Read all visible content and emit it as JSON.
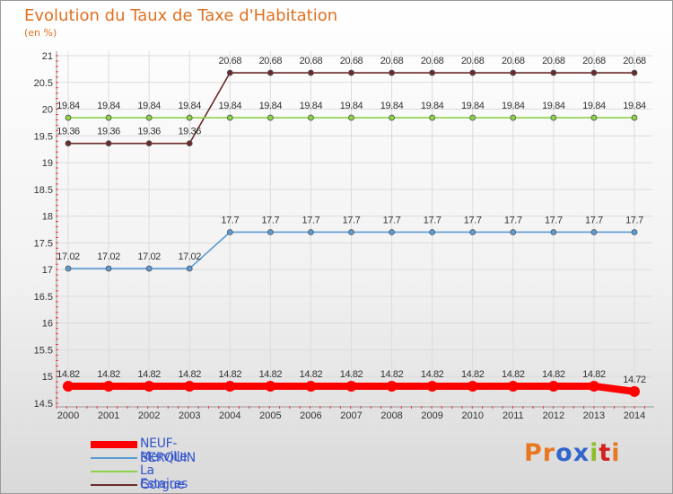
{
  "title": "Evolution du Taux de Taxe d'Habitation",
  "subtitle": "(en %)",
  "logo": {
    "text": "Proxiti",
    "colors": [
      "#e87722",
      "#e87722",
      "#3366cc",
      "#3366cc",
      "#8bbf2a",
      "#d42020",
      "#e87722"
    ]
  },
  "chart_data": {
    "type": "line",
    "title": "Evolution du Taux de Taxe d'Habitation",
    "ylabel": "(en %)",
    "xlabel": "",
    "x": [
      "2000",
      "2001",
      "2002",
      "2003",
      "2004",
      "2005",
      "2006",
      "2007",
      "2008",
      "2009",
      "2010",
      "2011",
      "2012",
      "2013",
      "2014"
    ],
    "ylim": [
      14.5,
      21
    ],
    "yticks": [
      "14.5",
      "15",
      "15.5",
      "16",
      "16.5",
      "17",
      "17.5",
      "18",
      "18.5",
      "19",
      "19.5",
      "20",
      "20.5",
      "21"
    ],
    "grid": true,
    "legend_position": "bottom-left",
    "series": [
      {
        "name": "NEUF-BERQUIN",
        "color": "#ff0000",
        "thick": true,
        "values": [
          14.82,
          14.82,
          14.82,
          14.82,
          14.82,
          14.82,
          14.82,
          14.82,
          14.82,
          14.82,
          14.82,
          14.82,
          14.82,
          14.82,
          14.72
        ],
        "labels": [
          "14.82",
          "14.82",
          "14.82",
          "14.82",
          "14.82",
          "14.82",
          "14.82",
          "14.82",
          "14.82",
          "14.82",
          "14.82",
          "14.82",
          "14.82",
          "14.82",
          "14.72"
        ]
      },
      {
        "name": "Merville",
        "color": "#5b9bd5",
        "thick": false,
        "values": [
          17.02,
          17.02,
          17.02,
          17.02,
          17.7,
          17.7,
          17.7,
          17.7,
          17.7,
          17.7,
          17.7,
          17.7,
          17.7,
          17.7,
          17.7
        ],
        "labels": [
          "17.02",
          "17.02",
          "17.02",
          "17.02",
          "17.7",
          "17.7",
          "17.7",
          "17.7",
          "17.7",
          "17.7",
          "17.7",
          "17.7",
          "17.7",
          "17.7",
          "17.7"
        ]
      },
      {
        "name": "La Gorgue",
        "color": "#8cd346",
        "thick": false,
        "values": [
          19.84,
          19.84,
          19.84,
          19.84,
          19.84,
          19.84,
          19.84,
          19.84,
          19.84,
          19.84,
          19.84,
          19.84,
          19.84,
          19.84,
          19.84
        ],
        "labels": [
          "19.84",
          "19.84",
          "19.84",
          "19.84",
          "19.84",
          "19.84",
          "19.84",
          "19.84",
          "19.84",
          "19.84",
          "19.84",
          "19.84",
          "19.84",
          "19.84",
          "19.84"
        ]
      },
      {
        "name": "Estaires",
        "color": "#6b2a2a",
        "thick": false,
        "values": [
          19.36,
          19.36,
          19.36,
          19.36,
          20.68,
          20.68,
          20.68,
          20.68,
          20.68,
          20.68,
          20.68,
          20.68,
          20.68,
          20.68,
          20.68
        ],
        "labels": [
          "19.36",
          "19.36",
          "19.36",
          "19.36",
          "20.68",
          "20.68",
          "20.68",
          "20.68",
          "20.68",
          "20.68",
          "20.68",
          "20.68",
          "20.68",
          "20.68",
          "20.68"
        ]
      }
    ]
  }
}
